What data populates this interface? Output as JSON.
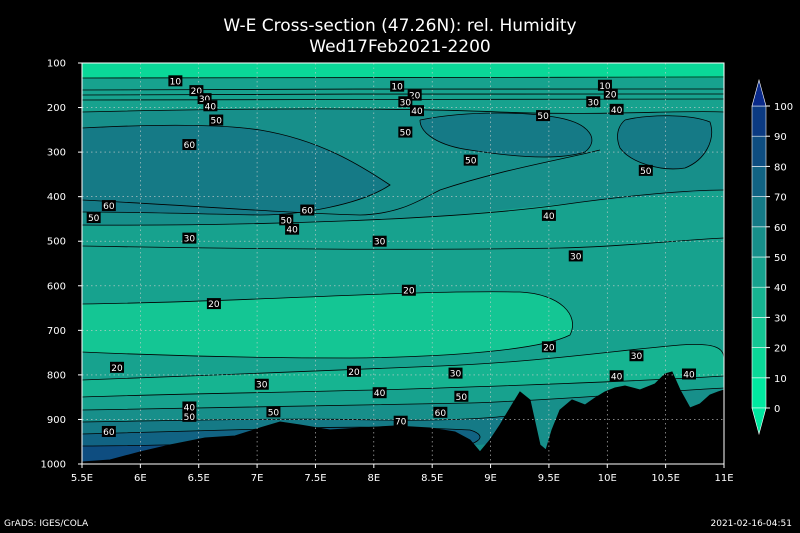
{
  "chart_data": {
    "type": "heatmap",
    "title": "W-E Cross-section (47.26N): rel. Humidity",
    "subtitle": "Wed17Feb2021-2200",
    "x_ticks": [
      "5.5E",
      "6E",
      "6.5E",
      "7E",
      "7.5E",
      "8E",
      "8.5E",
      "9E",
      "9.5E",
      "10E",
      "10.5E",
      "11E"
    ],
    "x_values": [
      5.5,
      6,
      6.5,
      7,
      7.5,
      8,
      8.5,
      9,
      9.5,
      10,
      10.5,
      11
    ],
    "xlim": [
      5.5,
      11
    ],
    "y_ticks": [
      "100",
      "200",
      "300",
      "400",
      "500",
      "600",
      "700",
      "800",
      "900",
      "1000"
    ],
    "y_values": [
      100,
      200,
      300,
      400,
      500,
      600,
      700,
      800,
      900,
      1000
    ],
    "ylim": [
      100,
      1000
    ],
    "grid": true,
    "colorbar": {
      "levels": [
        0,
        10,
        20,
        30,
        40,
        50,
        60,
        70,
        80,
        90,
        100
      ],
      "labels": [
        "0",
        "10",
        "20",
        "30",
        "40",
        "50",
        "60",
        "70",
        "80",
        "90",
        "100"
      ],
      "colors": [
        "#00e8a0",
        "#0ad898",
        "#14c694",
        "#16b491",
        "#17a28e",
        "#178f8a",
        "#157a86",
        "#116383",
        "#0e4d80",
        "#0b3a82",
        "#0a2a8a"
      ]
    },
    "contour_labels": [
      {
        "x": 6.3,
        "y": 140,
        "text": "10"
      },
      {
        "x": 6.48,
        "y": 162,
        "text": "20"
      },
      {
        "x": 6.55,
        "y": 180,
        "text": "30"
      },
      {
        "x": 6.6,
        "y": 196,
        "text": "40"
      },
      {
        "x": 6.65,
        "y": 228,
        "text": "50"
      },
      {
        "x": 6.42,
        "y": 283,
        "text": "60"
      },
      {
        "x": 5.73,
        "y": 420,
        "text": "60"
      },
      {
        "x": 5.6,
        "y": 447,
        "text": "50"
      },
      {
        "x": 6.42,
        "y": 493,
        "text": "30"
      },
      {
        "x": 7.25,
        "y": 452,
        "text": "50"
      },
      {
        "x": 7.3,
        "y": 473,
        "text": "40"
      },
      {
        "x": 7.43,
        "y": 430,
        "text": "60"
      },
      {
        "x": 8.2,
        "y": 152,
        "text": "10"
      },
      {
        "x": 8.35,
        "y": 172,
        "text": "20"
      },
      {
        "x": 8.27,
        "y": 187,
        "text": "30"
      },
      {
        "x": 8.37,
        "y": 207,
        "text": "40"
      },
      {
        "x": 8.27,
        "y": 255,
        "text": "50"
      },
      {
        "x": 8.05,
        "y": 500,
        "text": "30"
      },
      {
        "x": 8.83,
        "y": 318,
        "text": "50"
      },
      {
        "x": 9.45,
        "y": 218,
        "text": "50"
      },
      {
        "x": 9.5,
        "y": 442,
        "text": "40"
      },
      {
        "x": 9.73,
        "y": 533,
        "text": "30"
      },
      {
        "x": 9.98,
        "y": 150,
        "text": "10"
      },
      {
        "x": 10.03,
        "y": 170,
        "text": "20"
      },
      {
        "x": 9.88,
        "y": 187,
        "text": "30"
      },
      {
        "x": 10.08,
        "y": 204,
        "text": "40"
      },
      {
        "x": 10.33,
        "y": 341,
        "text": "50"
      },
      {
        "x": 6.63,
        "y": 640,
        "text": "20"
      },
      {
        "x": 8.3,
        "y": 610,
        "text": "20"
      },
      {
        "x": 9.5,
        "y": 737,
        "text": "20"
      },
      {
        "x": 5.8,
        "y": 783,
        "text": "20"
      },
      {
        "x": 7.83,
        "y": 792,
        "text": "20"
      },
      {
        "x": 8.7,
        "y": 796,
        "text": "30"
      },
      {
        "x": 10.25,
        "y": 757,
        "text": "30"
      },
      {
        "x": 7.04,
        "y": 821,
        "text": "30"
      },
      {
        "x": 8.05,
        "y": 840,
        "text": "40"
      },
      {
        "x": 8.75,
        "y": 848,
        "text": "50"
      },
      {
        "x": 10.08,
        "y": 802,
        "text": "40"
      },
      {
        "x": 10.7,
        "y": 798,
        "text": "40"
      },
      {
        "x": 6.42,
        "y": 872,
        "text": "40"
      },
      {
        "x": 6.42,
        "y": 893,
        "text": "50"
      },
      {
        "x": 7.14,
        "y": 883,
        "text": "50"
      },
      {
        "x": 8.57,
        "y": 884,
        "text": "60"
      },
      {
        "x": 8.23,
        "y": 904,
        "text": "70"
      },
      {
        "x": 5.73,
        "y": 927,
        "text": "60"
      }
    ]
  },
  "footer": {
    "credit": "GrADS: IGES/COLA",
    "timestamp": "2021-02-16-04:51"
  }
}
